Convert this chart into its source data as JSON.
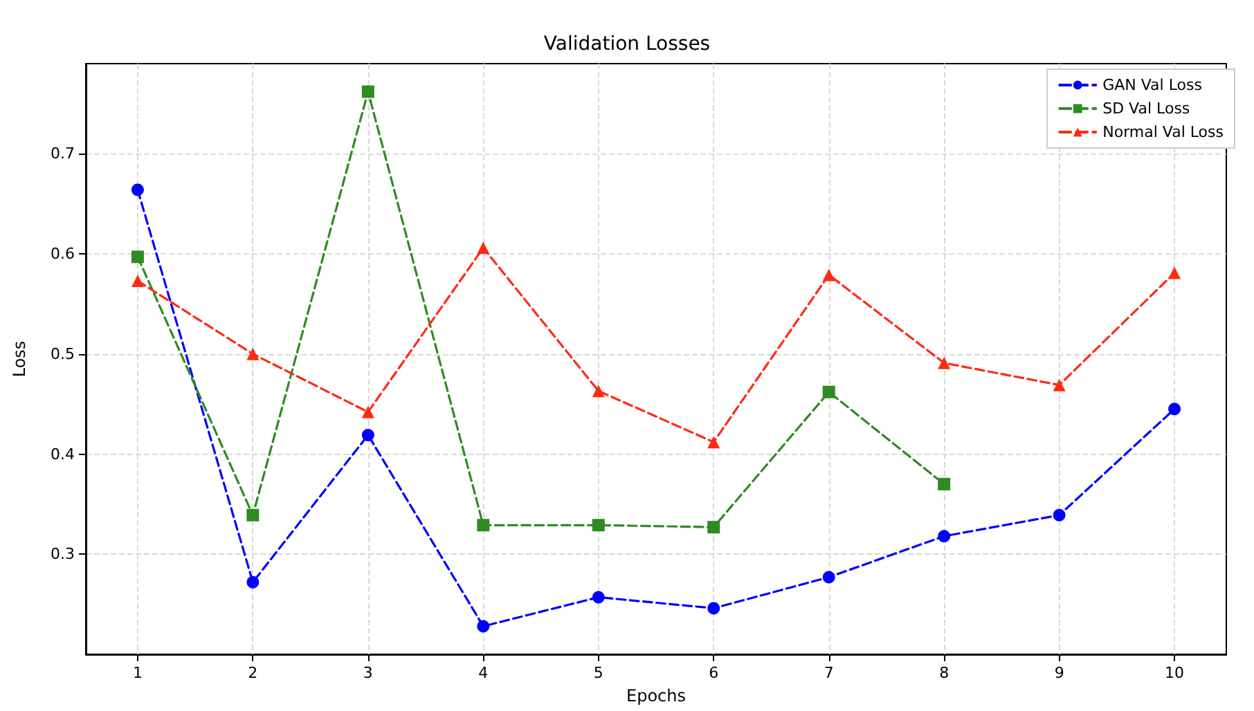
{
  "chart_data": {
    "type": "line",
    "title": "Validation Losses",
    "xlabel": "Epochs",
    "ylabel": "Loss",
    "x": [
      1,
      2,
      3,
      4,
      5,
      6,
      7,
      8,
      9,
      10
    ],
    "series": [
      {
        "name": "GAN Val Loss",
        "color": "#0000ff",
        "marker": "circle",
        "values": [
          0.664,
          0.272,
          0.419,
          0.228,
          0.257,
          0.246,
          0.277,
          0.318,
          0.339,
          0.445
        ]
      },
      {
        "name": "SD Val Loss",
        "color": "#2e8b22",
        "marker": "square",
        "values": [
          0.597,
          0.339,
          0.762,
          0.329,
          0.329,
          0.327,
          0.462,
          0.37,
          null,
          null
        ]
      },
      {
        "name": "Normal Val Loss",
        "color": "#ff2a14",
        "marker": "triangle",
        "values": [
          0.573,
          0.5,
          0.442,
          0.606,
          0.463,
          0.412,
          0.579,
          0.491,
          0.469,
          0.581
        ]
      }
    ],
    "xlim": [
      0.55,
      10.45
    ],
    "xticks": [
      1,
      2,
      3,
      4,
      5,
      6,
      7,
      8,
      9,
      10
    ],
    "ylim": [
      0.2,
      0.79
    ],
    "yticks": [
      0.3,
      0.4,
      0.5,
      0.6,
      0.7
    ],
    "grid": true,
    "legend": "top right",
    "line_style": "dashed"
  }
}
